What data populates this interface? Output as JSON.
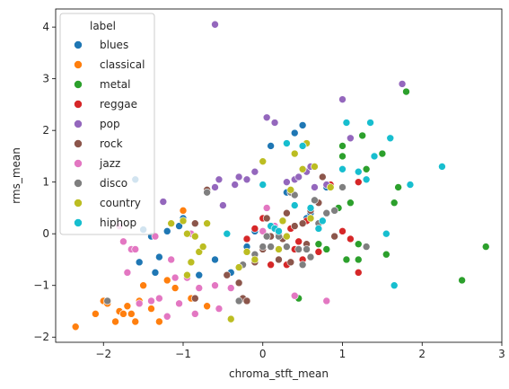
{
  "chart_data": {
    "type": "scatter",
    "xlabel": "chroma_stft_mean",
    "ylabel": "rms_mean",
    "xlim": [
      -2.6,
      3.0
    ],
    "ylim": [
      -2.1,
      4.35
    ],
    "xticks": [
      "−2",
      "−1",
      "0",
      "1",
      "2",
      "3"
    ],
    "xtick_values": [
      -2,
      -1,
      0,
      1,
      2,
      3
    ],
    "yticks": [
      "−2",
      "−1",
      "0",
      "1",
      "2",
      "3",
      "4"
    ],
    "ytick_values": [
      -2,
      -1,
      0,
      1,
      2,
      3,
      4
    ],
    "grid": false,
    "legend": {
      "title": "label",
      "placement": "top-left"
    },
    "series": [
      {
        "name": "blues",
        "color": "#1f77b4",
        "points": [
          [
            -1.6,
            1.05
          ],
          [
            -1.5,
            0.08
          ],
          [
            -1.4,
            -0.05
          ],
          [
            -1.35,
            -0.75
          ],
          [
            -1.3,
            -0.45
          ],
          [
            -1.2,
            0.05
          ],
          [
            -1.05,
            0.15
          ],
          [
            -1.0,
            0.3
          ],
          [
            -0.9,
            -0.55
          ],
          [
            -0.8,
            -0.8
          ],
          [
            -0.6,
            -0.5
          ],
          [
            -0.4,
            -0.75
          ],
          [
            -0.2,
            -0.25
          ],
          [
            -0.1,
            0.05
          ],
          [
            0.1,
            1.7
          ],
          [
            0.3,
            0.8
          ],
          [
            0.4,
            1.95
          ],
          [
            0.5,
            2.1
          ],
          [
            0.55,
            0.3
          ],
          [
            0.6,
            0.4
          ],
          [
            0.8,
            0.9
          ],
          [
            -1.55,
            -0.55
          ]
        ]
      },
      {
        "name": "classical",
        "color": "#ff7f0e",
        "points": [
          [
            -2.35,
            -1.8
          ],
          [
            -2.1,
            -1.55
          ],
          [
            -2.0,
            -1.3
          ],
          [
            -1.95,
            -1.35
          ],
          [
            -1.85,
            -1.7
          ],
          [
            -1.8,
            -1.5
          ],
          [
            -1.75,
            -1.55
          ],
          [
            -1.7,
            -1.4
          ],
          [
            -1.65,
            -1.55
          ],
          [
            -1.6,
            -1.7
          ],
          [
            -1.55,
            -1.3
          ],
          [
            -1.5,
            -1.0
          ],
          [
            -1.4,
            -1.45
          ],
          [
            -1.3,
            -1.7
          ],
          [
            -1.2,
            -0.9
          ],
          [
            -1.1,
            -1.05
          ],
          [
            -1.0,
            0.45
          ],
          [
            -0.9,
            -1.25
          ],
          [
            -0.7,
            -1.4
          ],
          [
            -1.75,
            -1.55
          ]
        ]
      },
      {
        "name": "metal",
        "color": "#2ca02c",
        "points": [
          [
            0.45,
            -1.25
          ],
          [
            0.7,
            -0.2
          ],
          [
            0.8,
            -0.3
          ],
          [
            0.95,
            0.5
          ],
          [
            1.0,
            1.5
          ],
          [
            1.0,
            1.7
          ],
          [
            1.05,
            -0.5
          ],
          [
            1.1,
            0.6
          ],
          [
            1.2,
            -0.5
          ],
          [
            1.25,
            1.9
          ],
          [
            1.3,
            1.25
          ],
          [
            1.4,
            1.5
          ],
          [
            1.5,
            1.55
          ],
          [
            1.55,
            -0.4
          ],
          [
            1.65,
            0.6
          ],
          [
            1.7,
            0.9
          ],
          [
            1.8,
            2.75
          ],
          [
            2.5,
            -0.9
          ],
          [
            2.8,
            -0.25
          ],
          [
            1.2,
            -0.2
          ]
        ]
      },
      {
        "name": "reggae",
        "color": "#d62728",
        "points": [
          [
            -0.2,
            -0.1
          ],
          [
            -0.1,
            0.1
          ],
          [
            0.0,
            0.3
          ],
          [
            0.1,
            -0.6
          ],
          [
            0.2,
            0.0
          ],
          [
            0.3,
            -0.6
          ],
          [
            0.35,
            0.1
          ],
          [
            0.4,
            -0.3
          ],
          [
            0.45,
            -0.15
          ],
          [
            0.55,
            0.25
          ],
          [
            0.6,
            1.3
          ],
          [
            0.7,
            -0.35
          ],
          [
            0.85,
            0.95
          ],
          [
            1.0,
            0.05
          ],
          [
            1.1,
            -0.1
          ],
          [
            1.2,
            -0.75
          ],
          [
            1.2,
            1.0
          ],
          [
            0.5,
            -0.5
          ]
        ]
      },
      {
        "name": "pop",
        "color": "#9467bd",
        "points": [
          [
            -0.6,
            4.05
          ],
          [
            -1.25,
            0.62
          ],
          [
            -0.6,
            0.9
          ],
          [
            -0.55,
            1.05
          ],
          [
            -0.35,
            0.95
          ],
          [
            -0.3,
            1.1
          ],
          [
            -0.2,
            1.05
          ],
          [
            -0.1,
            1.2
          ],
          [
            0.05,
            2.25
          ],
          [
            0.15,
            2.15
          ],
          [
            0.3,
            1.0
          ],
          [
            0.4,
            1.05
          ],
          [
            0.5,
            1.7
          ],
          [
            0.55,
            1.2
          ],
          [
            0.6,
            1.3
          ],
          [
            0.65,
            0.9
          ],
          [
            0.8,
            0.95
          ],
          [
            1.0,
            2.6
          ],
          [
            1.1,
            1.85
          ],
          [
            1.75,
            2.9
          ],
          [
            -0.5,
            0.55
          ],
          [
            0.45,
            1.1
          ]
        ]
      },
      {
        "name": "rock",
        "color": "#8c564b",
        "points": [
          [
            -1.95,
            -1.3
          ],
          [
            -0.85,
            -1.25
          ],
          [
            -0.85,
            0.2
          ],
          [
            -0.7,
            0.85
          ],
          [
            -0.45,
            -0.8
          ],
          [
            -0.3,
            -0.95
          ],
          [
            -0.25,
            -1.25
          ],
          [
            -0.2,
            -1.3
          ],
          [
            -0.1,
            -0.55
          ],
          [
            0.0,
            -0.3
          ],
          [
            0.05,
            0.3
          ],
          [
            0.1,
            -0.05
          ],
          [
            0.2,
            -0.5
          ],
          [
            0.25,
            -0.1
          ],
          [
            0.3,
            0.4
          ],
          [
            0.35,
            -0.55
          ],
          [
            0.4,
            0.15
          ],
          [
            0.5,
            0.2
          ],
          [
            0.55,
            -0.2
          ],
          [
            0.6,
            0.45
          ],
          [
            0.7,
            0.6
          ],
          [
            0.75,
            1.1
          ],
          [
            0.9,
            -0.05
          ]
        ]
      },
      {
        "name": "jazz",
        "color": "#e377c2",
        "points": [
          [
            -1.8,
            0.15
          ],
          [
            -1.75,
            -0.15
          ],
          [
            -1.7,
            -0.75
          ],
          [
            -1.65,
            -0.3
          ],
          [
            -1.6,
            -0.3
          ],
          [
            -1.55,
            -1.35
          ],
          [
            -1.4,
            -1.3
          ],
          [
            -1.35,
            -0.05
          ],
          [
            -1.3,
            -1.25
          ],
          [
            -1.2,
            -1.6
          ],
          [
            -1.15,
            -0.5
          ],
          [
            -1.1,
            -0.85
          ],
          [
            -1.05,
            -1.35
          ],
          [
            -0.95,
            -0.85
          ],
          [
            -0.9,
            0.0
          ],
          [
            -0.85,
            -1.55
          ],
          [
            -0.8,
            -1.05
          ],
          [
            -0.75,
            -0.25
          ],
          [
            -0.6,
            -1.0
          ],
          [
            -0.55,
            -1.45
          ],
          [
            -0.4,
            -1.05
          ],
          [
            0.0,
            0.05
          ],
          [
            0.05,
            0.5
          ],
          [
            0.15,
            0.15
          ],
          [
            0.4,
            -1.2
          ],
          [
            0.8,
            -1.3
          ]
        ]
      },
      {
        "name": "disco",
        "color": "#7f7f7f",
        "points": [
          [
            -1.95,
            -1.3
          ],
          [
            -0.7,
            0.8
          ],
          [
            -0.3,
            -1.3
          ],
          [
            -0.25,
            -0.6
          ],
          [
            -0.1,
            -0.4
          ],
          [
            0.0,
            -0.25
          ],
          [
            0.05,
            -0.05
          ],
          [
            0.1,
            -0.25
          ],
          [
            0.2,
            -0.05
          ],
          [
            0.3,
            -0.25
          ],
          [
            0.35,
            0.8
          ],
          [
            0.4,
            0.75
          ],
          [
            0.45,
            -0.3
          ],
          [
            0.5,
            -0.6
          ],
          [
            0.55,
            -0.3
          ],
          [
            0.6,
            -0.45
          ],
          [
            0.7,
            0.2
          ],
          [
            0.8,
            0.4
          ],
          [
            0.9,
            0.45
          ],
          [
            1.0,
            0.9
          ],
          [
            1.3,
            -0.25
          ],
          [
            0.65,
            0.65
          ]
        ]
      },
      {
        "name": "country",
        "color": "#bcbd22",
        "points": [
          [
            -1.15,
            0.2
          ],
          [
            -1.0,
            0.25
          ],
          [
            -0.95,
            -0.8
          ],
          [
            -0.9,
            -0.55
          ],
          [
            -0.85,
            -0.05
          ],
          [
            -0.8,
            -0.35
          ],
          [
            -0.75,
            -0.25
          ],
          [
            -0.7,
            0.2
          ],
          [
            -0.4,
            -1.65
          ],
          [
            -0.3,
            -0.65
          ],
          [
            -0.2,
            -0.35
          ],
          [
            -0.1,
            -0.5
          ],
          [
            0.0,
            1.4
          ],
          [
            0.2,
            -0.3
          ],
          [
            0.25,
            0.25
          ],
          [
            0.3,
            -0.05
          ],
          [
            0.35,
            0.85
          ],
          [
            0.4,
            1.55
          ],
          [
            0.5,
            1.25
          ],
          [
            0.55,
            1.75
          ],
          [
            0.6,
            0.3
          ],
          [
            0.65,
            1.3
          ],
          [
            0.85,
            0.9
          ],
          [
            -0.95,
            0.0
          ]
        ]
      },
      {
        "name": "hiphop",
        "color": "#17becf",
        "points": [
          [
            -0.45,
            0.0
          ],
          [
            0.0,
            0.95
          ],
          [
            0.1,
            0.15
          ],
          [
            0.15,
            0.1
          ],
          [
            0.2,
            0.05
          ],
          [
            0.3,
            1.75
          ],
          [
            0.4,
            0.55
          ],
          [
            0.5,
            1.7
          ],
          [
            0.6,
            0.5
          ],
          [
            0.7,
            0.1
          ],
          [
            0.75,
            0.25
          ],
          [
            1.05,
            2.15
          ],
          [
            1.2,
            1.2
          ],
          [
            1.3,
            1.05
          ],
          [
            1.35,
            2.15
          ],
          [
            1.4,
            1.5
          ],
          [
            1.55,
            0.0
          ],
          [
            1.6,
            1.85
          ],
          [
            1.65,
            -1.0
          ],
          [
            1.85,
            0.95
          ],
          [
            2.25,
            1.3
          ],
          [
            1.0,
            1.25
          ]
        ]
      }
    ]
  }
}
